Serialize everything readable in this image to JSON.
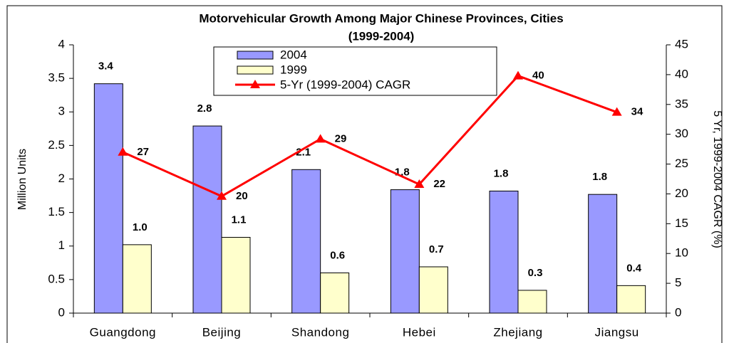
{
  "chart_data": {
    "type": "bar",
    "title": [
      "Motorvehicular Growth Among Major Chinese Provinces, Cities",
      "(1999-2004)"
    ],
    "y_label": "Million Units",
    "y2_label": "5 Yr, 1999-2004 CAGR (%)",
    "categories": [
      "Guangdong",
      "Beijing",
      "Shandong",
      "Hebei",
      "Zhejiang",
      "Jiangsu"
    ],
    "series": [
      {
        "name": "2004",
        "type": "bar",
        "color": "#9999ff",
        "values": [
          3.42,
          2.79,
          2.14,
          1.84,
          1.82,
          1.77
        ],
        "value_labels": [
          "3.4",
          "2.8",
          "2.1",
          "1.8",
          "1.8",
          "1.8"
        ]
      },
      {
        "name": "1999",
        "type": "bar",
        "color": "#ffffcc",
        "values": [
          1.02,
          1.13,
          0.6,
          0.69,
          0.34,
          0.41
        ],
        "value_labels": [
          "1.0",
          "1.1",
          "0.6",
          "0.7",
          "0.3",
          "0.4"
        ]
      },
      {
        "name": "5-Yr (1999-2004) CAGR",
        "type": "line",
        "axis": "y2",
        "color": "#ff0000",
        "values": [
          27,
          19.6,
          29.2,
          21.6,
          39.8,
          33.7
        ],
        "value_labels": [
          "27",
          "20",
          "29",
          "22",
          "40",
          "34"
        ]
      }
    ],
    "ylim": [
      0,
      4
    ],
    "yticks": [
      0,
      0.5,
      1,
      1.5,
      2,
      2.5,
      3,
      3.5,
      4
    ],
    "y2lim": [
      0,
      45
    ],
    "y2ticks": [
      0,
      5,
      10,
      15,
      20,
      25,
      30,
      35,
      40,
      45
    ],
    "legend": "top"
  }
}
